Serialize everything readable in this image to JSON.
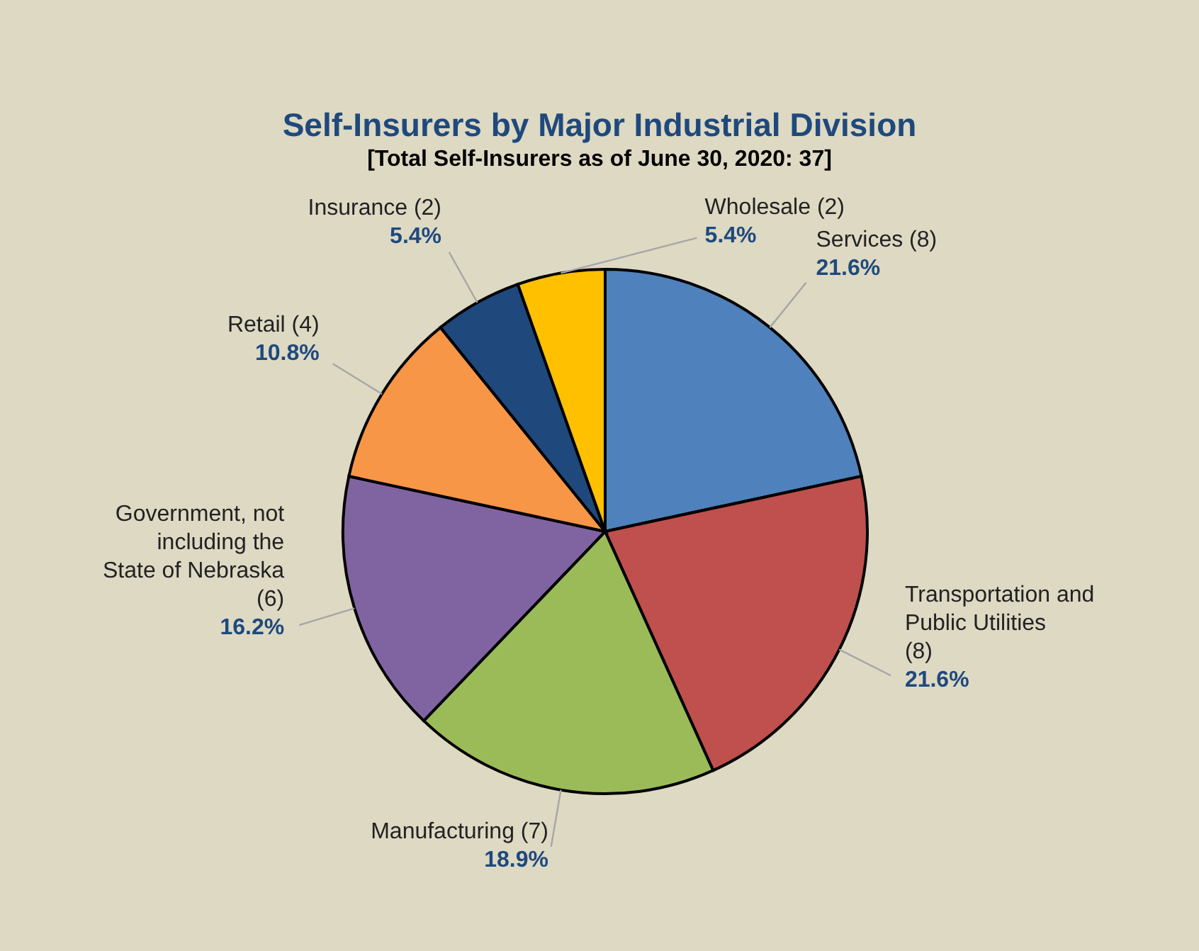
{
  "chart_data": {
    "type": "pie",
    "title": "Self-Insurers by Major Industrial Division",
    "subtitle": "[Total Self-Insurers as of June 30, 2020: 37]",
    "categories": [
      "Services (8)",
      "Transportation and Public Utilities (8)",
      "Manufacturing (7)",
      "Government, not including the State of Nebraska (6)",
      "Retail (4)",
      "Insurance (2)",
      "Wholesale (2)"
    ],
    "values": [
      21.6,
      21.6,
      18.9,
      16.2,
      10.8,
      5.4,
      5.4
    ],
    "value_labels": [
      "21.6%",
      "21.6%",
      "18.9%",
      "16.2%",
      "10.8%",
      "5.4%",
      "5.4%"
    ],
    "colors": [
      "#4f81bd",
      "#c0504d",
      "#9bbb59",
      "#8064a2",
      "#f79646",
      "#1f497d",
      "#ffc000"
    ]
  }
}
